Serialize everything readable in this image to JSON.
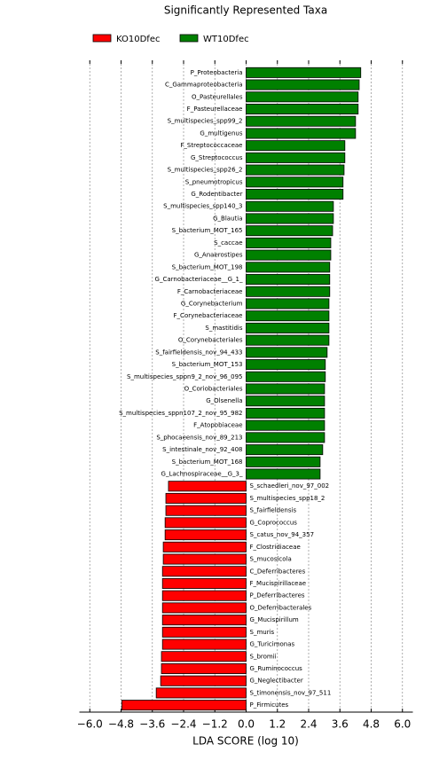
{
  "chart_data": {
    "type": "bar",
    "orientation": "horizontal",
    "title": "Significantly Represented Taxa",
    "x_label": "LDA SCORE (log 10)",
    "categories": [
      "P_Proteobacteria",
      "C_Gammaproteobacteria",
      "O_Pasteurellales",
      "F_Pasteurellaceae",
      "S_multispecies_spp99_2",
      "G_multigenus",
      "F_Streptococcaceae",
      "G_Streptococcus",
      "S_multispecies_spp26_2",
      "S_pneumotropicus",
      "G_Rodentibacter",
      "S_multispecies_spp140_3",
      "G_Blautia",
      "S_bacterium_MOT_165",
      "S_caccae",
      "G_Anaerostipes",
      "S_bacterium_MOT_198",
      "G_Carnobacteriaceae__G_1_",
      "F_Carnobacteriaceae",
      "G_Corynebacterium",
      "F_Corynebacteriaceae",
      "S_mastitidis",
      "O_Corynebacteriales",
      "S_fairfieldensis_nov_94_433",
      "S_bacterium_MOT_153",
      "S_multispecies_sppn9_2_nov_96_095",
      "O_Coriobacteriales",
      "G_Olsenella",
      "S_multispecies_sppn107_2_nov_95_982",
      "F_Atopobiaceae",
      "S_phocaeensis_nov_89_213",
      "S_intestinale_nov_92_408",
      "S_bacterium_MOT_168",
      "G_Lachnospiraceae__G_3_",
      "S_schaedleri_nov_97_002",
      "S_multispecies_spp18_2",
      "S_fairfieldensis",
      "G_Coprococcus",
      "S_catus_nov_94_357",
      "F_Clostridiaceae",
      "S_mucosicola",
      "C_Deferribacteres",
      "F_Mucispirillaceae",
      "P_Deferribacteres",
      "O_Deferribacterales",
      "G_Mucispirillum",
      "S_muris",
      "G_Turicimonas",
      "S_bromii",
      "G_Ruminococcus",
      "G_Neglectibacter",
      "S_timonensis_nov_97_511",
      "P_Firmicutes"
    ],
    "series": [
      {
        "name": "KO10Dfec",
        "color": "#ff0000",
        "values": [
          null,
          null,
          null,
          null,
          null,
          null,
          null,
          null,
          null,
          null,
          null,
          null,
          null,
          null,
          null,
          null,
          null,
          null,
          null,
          null,
          null,
          null,
          null,
          null,
          null,
          null,
          null,
          null,
          null,
          null,
          null,
          null,
          null,
          null,
          -2.98,
          -3.08,
          -3.08,
          -3.11,
          -3.11,
          -3.18,
          -3.18,
          -3.21,
          -3.21,
          -3.21,
          -3.21,
          -3.21,
          -3.21,
          -3.21,
          -3.25,
          -3.25,
          -3.28,
          -3.45,
          -4.77
        ]
      },
      {
        "name": "WT10Dfec",
        "color": "#008000",
        "values": [
          4.4,
          4.34,
          4.3,
          4.3,
          4.2,
          4.2,
          3.79,
          3.79,
          3.76,
          3.72,
          3.72,
          3.35,
          3.35,
          3.32,
          3.25,
          3.25,
          3.21,
          3.21,
          3.21,
          3.18,
          3.18,
          3.18,
          3.18,
          3.11,
          3.04,
          3.04,
          3.01,
          3.01,
          3.01,
          3.01,
          3.01,
          2.94,
          2.84,
          2.84,
          null,
          null,
          null,
          null,
          null,
          null,
          null,
          null,
          null,
          null,
          null,
          null,
          null,
          null,
          null,
          null,
          null,
          null,
          null
        ]
      }
    ],
    "xlim": [
      -6.4,
      6.4
    ],
    "xticks": [
      {
        "value": -6.0,
        "label": "−6.0"
      },
      {
        "value": -4.8,
        "label": "−4.8"
      },
      {
        "value": -3.6,
        "label": "−3.6"
      },
      {
        "value": -2.4,
        "label": "−2.4"
      },
      {
        "value": -1.2,
        "label": "−1.2"
      },
      {
        "value": 0,
        "label": "0.0"
      },
      {
        "value": 1.2,
        "label": "1.2"
      },
      {
        "value": 2.4,
        "label": "2.4"
      },
      {
        "value": 3.6,
        "label": "3.6"
      },
      {
        "value": 4.8,
        "label": "4.8"
      },
      {
        "value": 6.0,
        "label": "6.0"
      }
    ],
    "grid": true,
    "legend": "top-left"
  }
}
